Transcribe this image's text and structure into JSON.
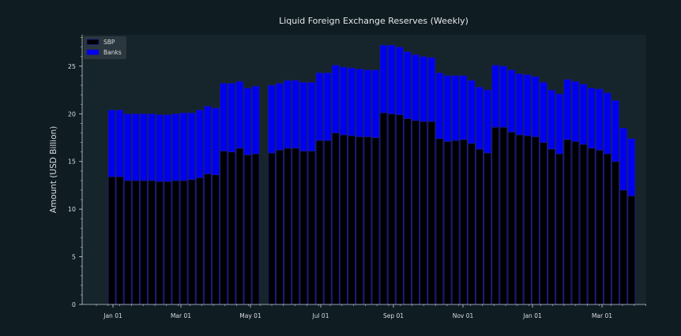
{
  "chart_data": {
    "type": "bar",
    "stacked": true,
    "title": "Liquid Foreign Exchange Reserves (Weekly)",
    "xlabel": "",
    "ylabel": "Amount (USD Billion)",
    "ylim": [
      0,
      28.3
    ],
    "yticks": [
      0,
      5,
      10,
      15,
      20,
      25
    ],
    "grid": false,
    "legend_position": "top-left",
    "x_tick_labels": [
      "Jan 01",
      "Mar 01",
      "May 01",
      "Jul 01",
      "Sep 01",
      "Nov 01",
      "Jan 01",
      "Mar 01"
    ],
    "colors": {
      "background": "#0f1c22",
      "plot_background": "#15252b",
      "text": "#d9dde0",
      "SBP": "#000000",
      "Banks": "#0000f0",
      "edge": "#1a1a8c"
    },
    "series": [
      {
        "name": "SBP",
        "values": [
          13.4,
          13.4,
          13.0,
          13.0,
          13.0,
          13.0,
          12.9,
          12.9,
          13.0,
          13.0,
          13.1,
          13.3,
          13.7,
          13.6,
          16.1,
          16.0,
          16.4,
          15.7,
          15.8,
          null,
          15.9,
          16.2,
          16.4,
          16.4,
          16.1,
          16.1,
          17.2,
          17.2,
          18.0,
          17.8,
          17.7,
          17.6,
          17.6,
          17.5,
          20.1,
          20.0,
          19.9,
          19.5,
          19.3,
          19.2,
          19.2,
          17.4,
          17.1,
          17.2,
          17.3,
          16.9,
          16.3,
          15.9,
          18.6,
          18.6,
          18.1,
          17.8,
          17.7,
          17.6,
          17.0,
          16.3,
          15.8,
          17.3,
          17.1,
          16.8,
          16.4,
          16.2,
          15.8,
          15.0,
          12.0,
          11.4
        ],
        "color": "#000000"
      },
      {
        "name": "Banks",
        "values": [
          7.0,
          7.0,
          7.0,
          7.0,
          7.0,
          7.0,
          7.0,
          7.0,
          7.0,
          7.1,
          7.0,
          7.1,
          7.1,
          7.0,
          7.1,
          7.2,
          7.0,
          7.0,
          7.1,
          null,
          7.1,
          7.0,
          7.1,
          7.1,
          7.2,
          7.2,
          7.1,
          7.1,
          7.1,
          7.1,
          7.1,
          7.1,
          7.0,
          7.1,
          7.1,
          7.2,
          7.1,
          7.0,
          6.9,
          6.8,
          6.7,
          6.9,
          6.9,
          6.8,
          6.7,
          6.6,
          6.5,
          6.6,
          6.5,
          6.4,
          6.5,
          6.4,
          6.4,
          6.3,
          6.3,
          6.2,
          6.3,
          6.3,
          6.3,
          6.3,
          6.3,
          6.4,
          6.4,
          6.4,
          6.5,
          6.0
        ],
        "color": "#0000f0"
      }
    ]
  }
}
